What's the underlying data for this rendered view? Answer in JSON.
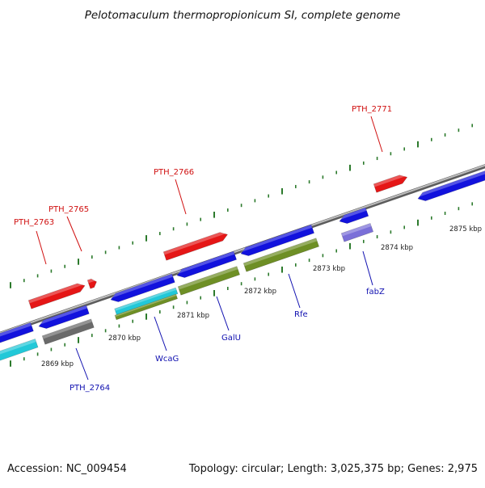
{
  "title": "Pelotomaculum thermopropionicum SI, complete genome",
  "footer": {
    "accession": "Accession: NC_009454",
    "topology": "Topology: circular; Length: 3,025,375 bp; Genes: 2,975"
  },
  "colors": {
    "red": "#e51616",
    "blue": "#1212dd",
    "cyan": "#22c8d8",
    "gray": "#6a6a6a",
    "olive": "#6e8f25",
    "lavender": "#7a6fd8",
    "track": "#8a8a8a",
    "tick": "#2c7a2c",
    "top_label": "#d01010",
    "bottom_label": "#1010b0"
  },
  "ticks": [
    "2869 kbp",
    "2870 kbp",
    "2871 kbp",
    "2872 kbp",
    "2873 kbp",
    "2874 kbp",
    "2875 kbp"
  ],
  "genes_top": [
    {
      "name": "PTH_2763"
    },
    {
      "name": "PTH_2765"
    },
    {
      "name": "PTH_2766"
    },
    {
      "name": "PTH_2771"
    }
  ],
  "genes_bottom": [
    {
      "name": "PTH_2764"
    },
    {
      "name": "WcaG"
    },
    {
      "name": "GalU"
    },
    {
      "name": "Rfe"
    },
    {
      "name": "fabZ"
    }
  ]
}
